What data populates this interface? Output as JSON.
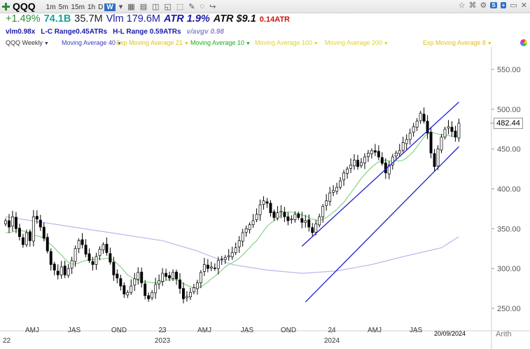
{
  "toolbar": {
    "symbol": "QQQ",
    "timeframes": [
      "1m",
      "5m",
      "15m",
      "1h",
      "D",
      "W"
    ],
    "active_timeframe": "W"
  },
  "stats_line1": [
    {
      "text": "+1.49%",
      "color": "#2e8b3a"
    },
    {
      "text": "74.1B",
      "color": "#1aa39a",
      "bold": true
    },
    {
      "text": "35.7M",
      "color": "#222222"
    },
    {
      "text": "Vlm 179.6M",
      "color": "#1a1aa6"
    },
    {
      "text": "ATR 1.9%",
      "color": "#1a1aa6",
      "italic": true,
      "bold": true
    },
    {
      "text": "ATR $9.1",
      "color": "#111111",
      "italic": true,
      "bold": true
    },
    {
      "text": "0.14ATR",
      "color": "#d01010",
      "bold": true,
      "small": true
    }
  ],
  "stats_line2": [
    {
      "text": "vlm0.98x",
      "color": "#1a1aa6"
    },
    {
      "text": "L-C Range0.45ATRs",
      "color": "#1a1aa6"
    },
    {
      "text": "H-L Range 0.59ATRs",
      "color": "#1a1aa6"
    },
    {
      "text": "v/avgv 0.98",
      "color": "#8888cc",
      "italic": true
    }
  ],
  "legend": [
    {
      "text": "QQQ Weekly",
      "color": "#333333"
    },
    {
      "text": "Moving Average 40",
      "color": "#3b3bcc"
    },
    {
      "text": "Exp Moving Average 21",
      "color": "#e0c020"
    },
    {
      "text": "Moving Average 10",
      "color": "#22aa22"
    },
    {
      "text": "Moving Average 100",
      "color": "#e0d030"
    },
    {
      "text": "Moving Average 200",
      "color": "#e0d030"
    },
    {
      "text": "Exp Moving Average 8",
      "color": "#e0c020"
    }
  ],
  "current_price": "482.44",
  "current_date": "20/09/2024",
  "scale_mode": "Arith",
  "chart_data": {
    "type": "candlestick",
    "timeframe": "weekly",
    "y_axis": {
      "ticks": [
        "550.00",
        "500.00",
        "450.00",
        "400.00",
        "350.00",
        "300.00",
        "250.00"
      ],
      "range": [
        240,
        560
      ]
    },
    "x_axis": {
      "labels": [
        "AMJ",
        "JAS",
        "OND",
        "23",
        "AMJ",
        "JAS",
        "OND",
        "24",
        "AMJ",
        "JAS"
      ],
      "year_labels": [
        "2023",
        "2024"
      ],
      "left_edge_label": "22"
    },
    "colors": {
      "up": "#ffffff",
      "down": "#000000",
      "outline": "#000000",
      "ma10": "#7ccf7c",
      "ma40": "#b9b9ec",
      "channel": "#1f1fcf"
    },
    "closes": [
      360,
      352,
      365,
      350,
      340,
      330,
      345,
      335,
      365,
      362,
      352,
      338,
      322,
      305,
      298,
      292,
      302,
      292,
      300,
      310,
      325,
      335,
      330,
      318,
      310,
      305,
      315,
      324,
      330,
      320,
      308,
      292,
      288,
      278,
      268,
      270,
      278,
      287,
      295,
      282,
      266,
      262,
      270,
      280,
      285,
      294,
      290,
      288,
      295,
      287,
      275,
      262,
      265,
      270,
      276,
      282,
      295,
      305,
      300,
      302,
      300,
      310,
      312,
      314,
      316,
      320,
      326,
      335,
      345,
      350,
      355,
      360,
      368,
      380,
      385,
      382,
      370,
      364,
      370,
      372,
      365,
      360,
      362,
      368,
      364,
      358,
      360,
      352,
      345,
      356,
      365,
      378,
      385,
      395,
      398,
      402,
      410,
      420,
      425,
      430,
      436,
      428,
      433,
      440,
      445,
      448,
      446,
      440,
      432,
      420,
      430,
      440,
      445,
      448,
      458,
      462,
      470,
      478,
      485,
      495,
      485,
      470,
      445,
      428,
      450,
      465,
      475,
      478,
      472,
      465,
      482.44
    ],
    "ma10": [
      345,
      345,
      346,
      347,
      348,
      347,
      346,
      343,
      342,
      341,
      340,
      338,
      334,
      330,
      326,
      321,
      317,
      312,
      308,
      305,
      306,
      307,
      309,
      310,
      311,
      311,
      312,
      312,
      312,
      313,
      312,
      310,
      306,
      302,
      297,
      292,
      289,
      287,
      285,
      284,
      283,
      283,
      282,
      282,
      282,
      283,
      285,
      286,
      286,
      286,
      284,
      281,
      279,
      277,
      276,
      276,
      277,
      280,
      283,
      287,
      290,
      294,
      298,
      302,
      305,
      307,
      310,
      313,
      317,
      322,
      326,
      331,
      335,
      341,
      347,
      353,
      357,
      360,
      363,
      367,
      370,
      371,
      371,
      370,
      369,
      367,
      366,
      364,
      362,
      361,
      360,
      362,
      364,
      367,
      371,
      374,
      379,
      383,
      389,
      395,
      401,
      407,
      413,
      418,
      423,
      427,
      431,
      434,
      436,
      436,
      435,
      435,
      435,
      435,
      436,
      439,
      443,
      447,
      453,
      459,
      465,
      469,
      471,
      470,
      469,
      468,
      468,
      467,
      466,
      465,
      467
    ],
    "ma40_points": [
      [
        0,
        365
      ],
      [
        15,
        355
      ],
      [
        30,
        345
      ],
      [
        45,
        335
      ],
      [
        55,
        322
      ],
      [
        65,
        305
      ],
      [
        75,
        298
      ],
      [
        85,
        294
      ],
      [
        95,
        297
      ],
      [
        105,
        305
      ],
      [
        115,
        316
      ],
      [
        125,
        326
      ],
      [
        130,
        340
      ]
    ],
    "channel_upper": [
      [
        85,
        328
      ],
      [
        130,
        509
      ]
    ],
    "channel_lower": [
      [
        86,
        258
      ],
      [
        130,
        453
      ]
    ]
  }
}
